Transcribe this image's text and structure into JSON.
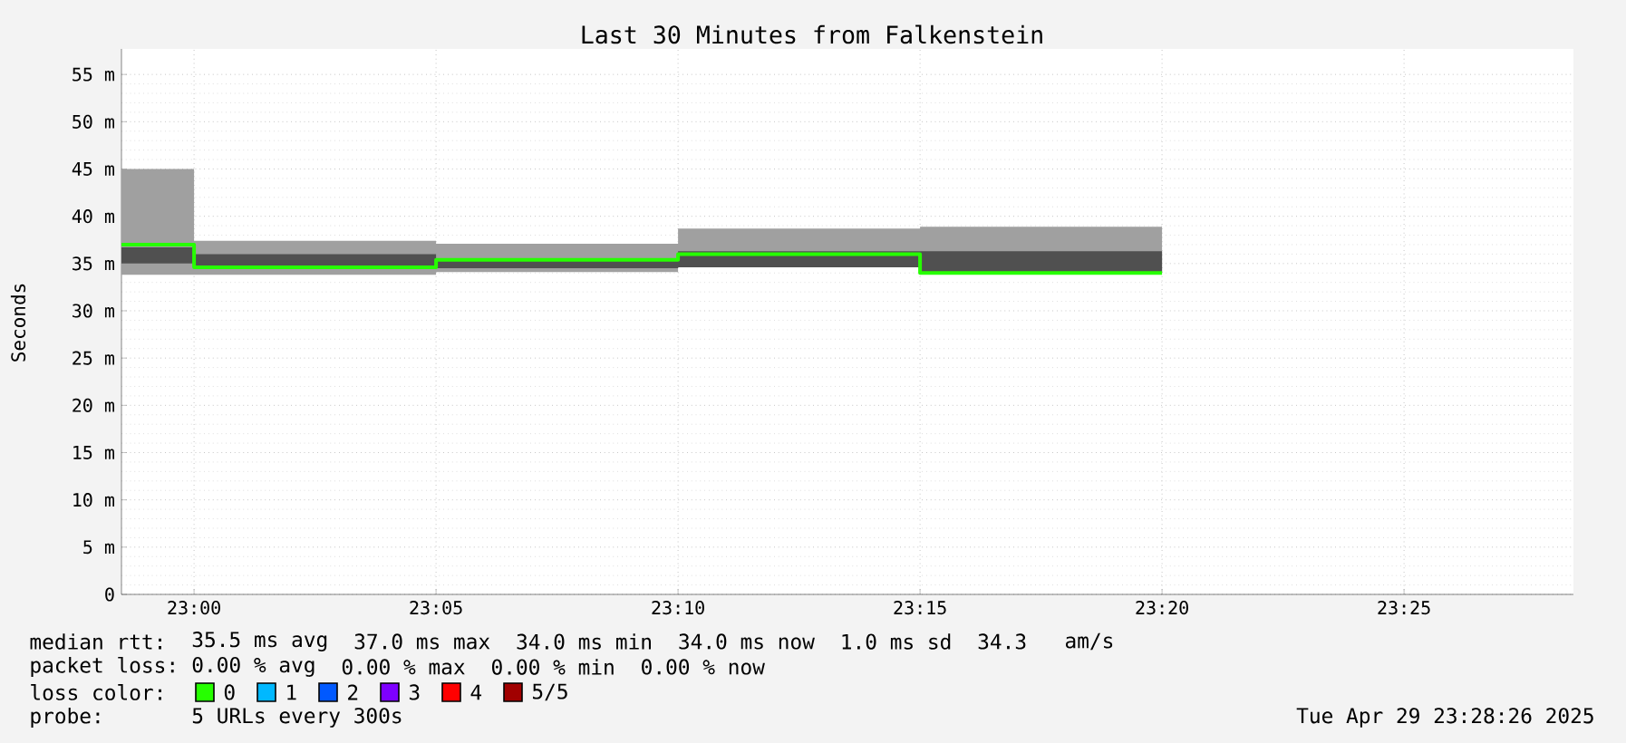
{
  "chart_data": {
    "type": "step",
    "title": "Last 30 Minutes from Falkenstein",
    "ylabel": "Seconds",
    "x": [
      22.975,
      23,
      23.083333,
      23.166667,
      23.25,
      23.333333
    ],
    "xlim": [
      22.975,
      23.475
    ],
    "xticks": [
      {
        "value": 23,
        "label": "23:00"
      },
      {
        "value": 23.083333,
        "label": "23:05"
      },
      {
        "value": 23.166667,
        "label": "23:10"
      },
      {
        "value": 23.25,
        "label": "23:15"
      },
      {
        "value": 23.333333,
        "label": "23:20"
      },
      {
        "value": 23.416667,
        "label": "23:25"
      }
    ],
    "ylim": [
      0,
      57.7
    ],
    "yticks": [
      0,
      {
        "value": 5,
        "label": "5 m"
      },
      {
        "value": 10,
        "label": "10 m"
      },
      {
        "value": 15,
        "label": "15 m"
      },
      {
        "value": 20,
        "label": "20 m"
      },
      {
        "value": 25,
        "label": "25 m"
      },
      {
        "value": 30,
        "label": "30 m"
      },
      {
        "value": 35,
        "label": "35 m"
      },
      {
        "value": 40,
        "label": "40 m"
      },
      {
        "value": 45,
        "label": "45 m"
      },
      {
        "value": 50,
        "label": "50 m"
      },
      {
        "value": 55,
        "label": "55 m"
      }
    ],
    "grid": true,
    "legend": "bottom left",
    "legend_title": "loss color:",
    "series": [
      {
        "color": "#a0a0a0",
        "values": [
          null,
          null,
          null,
          null,
          null,
          null
        ],
        "lower": [
          33.8,
          33.8,
          33.8,
          34.1,
          34.6,
          34.0
        ],
        "upper": [
          45.0,
          45.0,
          37.4,
          37.1,
          38.7,
          38.9
        ]
      },
      {
        "color": "#505050",
        "values": [
          null,
          null,
          null,
          null,
          null,
          null
        ],
        "lower": [
          35.0,
          35.0,
          34.5,
          34.5,
          34.6,
          34.0
        ],
        "upper": [
          36.7,
          36.7,
          36.0,
          35.4,
          36.3,
          36.3
        ]
      },
      {
        "name": "0",
        "color": "#26ff00",
        "values": [
          37.0,
          37.0,
          34.6,
          35.4,
          36.0,
          34.0
        ]
      },
      {
        "name": "1",
        "color": "#00b8ff",
        "values": [
          null,
          null,
          null,
          null,
          null,
          null
        ]
      },
      {
        "name": "2",
        "color": "#0059ff",
        "values": [
          null,
          null,
          null,
          null,
          null,
          null
        ]
      },
      {
        "name": "3",
        "color": "#7e00ff",
        "values": [
          null,
          null,
          null,
          null,
          null,
          null
        ]
      },
      {
        "name": "4",
        "color": "#ff0000",
        "values": [
          null,
          null,
          null,
          null,
          null,
          null
        ]
      },
      {
        "name": "5/5",
        "color": "#a10000",
        "values": [
          null,
          null,
          null,
          null,
          null,
          null
        ]
      }
    ],
    "annotations": [
      "median rtt:",
      "35.5 ms avg",
      "37.0 ms max",
      "34.0 ms min",
      "34.0 ms now",
      "1.0 ms sd",
      "34.3",
      "am/s",
      "packet loss:",
      "0.00 % avg",
      "0.00 % max",
      "0.00 % min",
      "0.00 % now",
      "probe:",
      "5 URLs every 300s",
      "Tue Apr 29 23:28:26 2025"
    ]
  }
}
